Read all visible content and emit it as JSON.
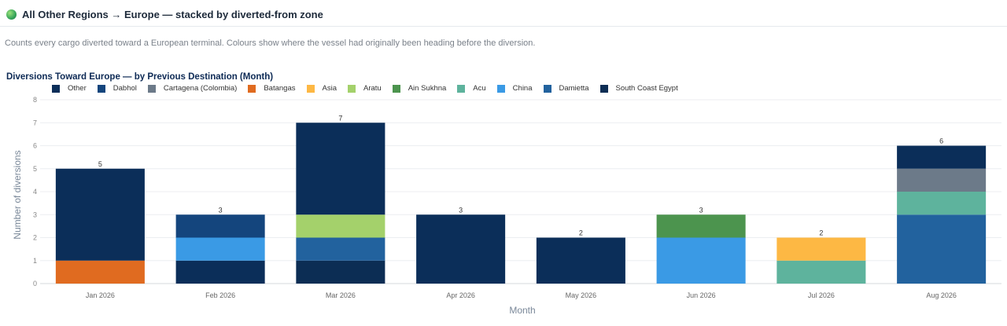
{
  "header": {
    "title": "All Other Regions → Europe — stacked by diverted-from zone",
    "description": "Counts every cargo diverted toward a European terminal. Colours show where the vessel had originally been heading before the diversion."
  },
  "chart_data": {
    "type": "bar",
    "stacked": true,
    "title": "Diversions Toward Europe — by Previous Destination (Month)",
    "xlabel": "Month",
    "ylabel": "Number of diversions",
    "ylim": [
      0,
      8
    ],
    "y_ticks": [
      0,
      1,
      2,
      3,
      4,
      5,
      6,
      7,
      8
    ],
    "grid": true,
    "legend_placement": "top-left",
    "categories": [
      "Jan 2026",
      "Feb 2026",
      "Mar 2026",
      "Apr 2026",
      "May 2026",
      "Jun 2026",
      "Jul 2026",
      "Aug 2026"
    ],
    "totals": [
      5,
      3,
      7,
      3,
      2,
      3,
      2,
      6
    ],
    "series": [
      {
        "name": "Other",
        "color": "#0b2e59",
        "values": [
          4,
          1,
          4,
          3,
          2,
          0,
          0,
          1
        ]
      },
      {
        "name": "Dabhol",
        "color": "#14457d",
        "values": [
          0,
          1,
          0,
          0,
          0,
          0,
          0,
          0
        ]
      },
      {
        "name": "Cartagena (Colombia)",
        "color": "#6c7a89",
        "values": [
          0,
          0,
          0,
          0,
          0,
          0,
          0,
          1
        ]
      },
      {
        "name": "Batangas",
        "color": "#e06b20",
        "values": [
          1,
          0,
          0,
          0,
          0,
          0,
          0,
          0
        ]
      },
      {
        "name": "Asia",
        "color": "#fdb844",
        "values": [
          0,
          0,
          0,
          0,
          0,
          0,
          1,
          0
        ]
      },
      {
        "name": "Aratu",
        "color": "#a4d16b",
        "values": [
          0,
          0,
          1,
          0,
          0,
          0,
          0,
          0
        ]
      },
      {
        "name": "Ain Sukhna",
        "color": "#4c944e",
        "values": [
          0,
          0,
          0,
          0,
          0,
          1,
          0,
          0
        ]
      },
      {
        "name": "Acu",
        "color": "#5eb39d",
        "values": [
          0,
          0,
          0,
          0,
          0,
          0,
          1,
          1
        ]
      },
      {
        "name": "China",
        "color": "#3a9ae5",
        "values": [
          0,
          1,
          0,
          0,
          0,
          2,
          0,
          0
        ]
      },
      {
        "name": "Damietta",
        "color": "#22629e",
        "values": [
          0,
          0,
          1,
          0,
          0,
          0,
          0,
          3
        ]
      },
      {
        "name": "South Coast Egypt",
        "color": "#0c2d54",
        "values": [
          0,
          0,
          1,
          0,
          0,
          0,
          0,
          0
        ]
      }
    ],
    "stack_order_bottom_to_top": {
      "Jan 2026": [
        "Batangas",
        "Other"
      ],
      "Feb 2026": [
        "Other",
        "China",
        "Dabhol"
      ],
      "Mar 2026": [
        "South Coast Egypt",
        "Damietta",
        "Aratu",
        "Other"
      ],
      "Apr 2026": [
        "Other"
      ],
      "May 2026": [
        "Other"
      ],
      "Jun 2026": [
        "China",
        "Ain Sukhna"
      ],
      "Jul 2026": [
        "Acu",
        "Asia"
      ],
      "Aug 2026": [
        "Damietta",
        "Acu",
        "Cartagena (Colombia)",
        "Other"
      ]
    }
  }
}
